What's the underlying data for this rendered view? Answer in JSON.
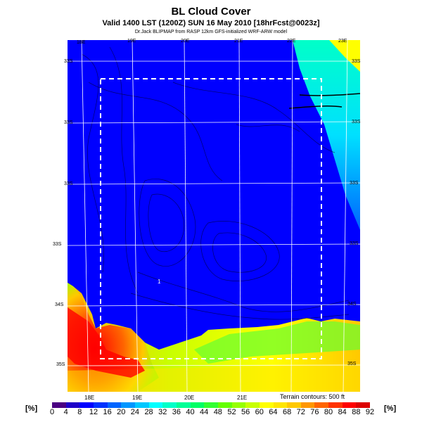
{
  "header": {
    "title": "BL Cloud Cover",
    "subtitle": "Valid 1400 LST (1200Z) SUN 16 May 2010 [18hrFcst@0023z]",
    "credit": "Dr.Jack BLIPMAP from RASP 12km GFS-initialized WRF-ARW model"
  },
  "map": {
    "lon_labels_top": [
      "18E",
      "19E",
      "20E",
      "21E",
      "22E",
      "23E"
    ],
    "lon_labels_bottom": [
      "18E",
      "19E",
      "20E",
      "21E"
    ],
    "lat_labels_left": [
      "33S",
      "33S",
      "33S",
      "33S",
      "34S",
      "35S"
    ],
    "lat_labels_right": [
      "33S",
      "33S",
      "33S",
      "33S",
      "34S",
      "35S"
    ],
    "point_label": "1",
    "terrain_note": "Terrain contours: 500 ft"
  },
  "colorbar": {
    "unit_left": "[%]",
    "unit_right": "[%]",
    "ticks": [
      "0",
      "4",
      "8",
      "12",
      "16",
      "20",
      "24",
      "28",
      "32",
      "36",
      "40",
      "44",
      "48",
      "52",
      "56",
      "60",
      "64",
      "68",
      "72",
      "76",
      "80",
      "84",
      "88",
      "92"
    ],
    "colors": [
      "#4b0082",
      "#1e00c8",
      "#0000ff",
      "#0032ff",
      "#0064ff",
      "#0096ff",
      "#00c8ff",
      "#00ffff",
      "#00ffc8",
      "#00ff96",
      "#00ff64",
      "#32ff32",
      "#64ff00",
      "#96ff00",
      "#c8ff00",
      "#ffff00",
      "#ffe600",
      "#ffc800",
      "#ff9600",
      "#ff6400",
      "#ff3200",
      "#ff0000",
      "#dc0000",
      "#b40000"
    ]
  }
}
